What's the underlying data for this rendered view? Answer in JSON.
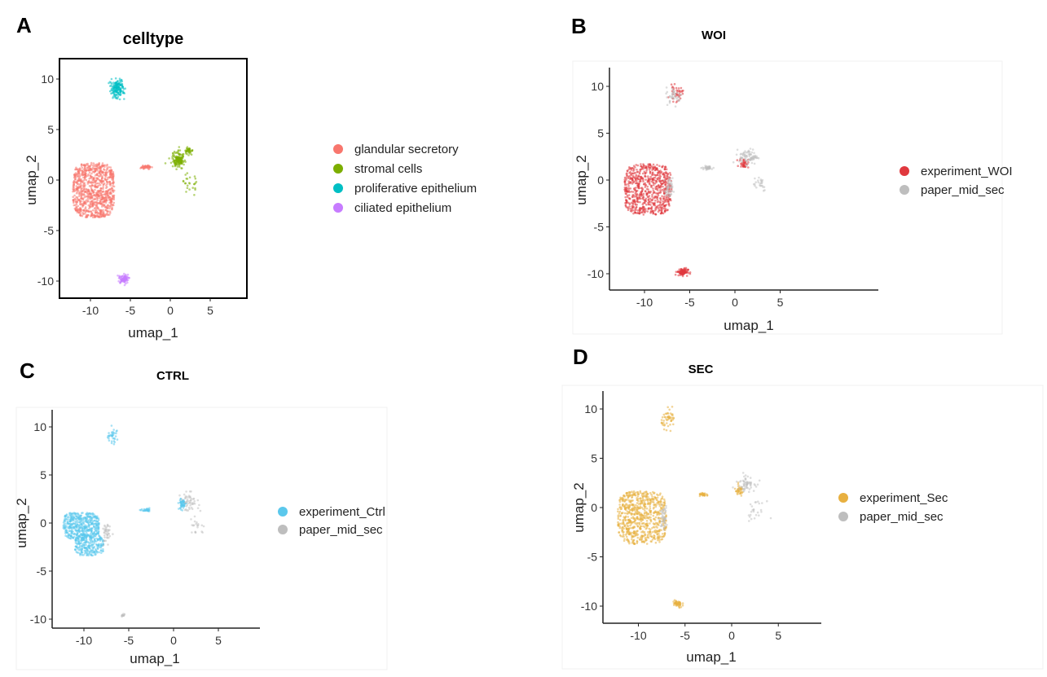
{
  "chart_data": [
    {
      "panel": "A",
      "type": "scatter",
      "title": "celltype",
      "xlabel": "umap_1",
      "ylabel": "umap_2",
      "xticks": [
        "-10",
        "-5",
        "0",
        "5"
      ],
      "yticks": [
        "10",
        "5",
        "0",
        "-5",
        "-10"
      ],
      "xlim": [
        -13.9,
        9.5
      ],
      "ylim": [
        -11.7,
        12.0
      ],
      "frame": "box",
      "legend_position": "right",
      "series": [
        {
          "name": "glandular secretory",
          "color": "#F8766D",
          "clusters": [
            {
              "cx": -9.6,
              "cy": -1.0,
              "sx": 2.6,
              "sy": 2.7,
              "n": 900,
              "shape": "box"
            },
            {
              "cx": -3.0,
              "cy": 1.3,
              "sx": 0.6,
              "sy": 0.2,
              "n": 40,
              "shape": "gauss"
            }
          ]
        },
        {
          "name": "stromal cells",
          "color": "#7CAE00",
          "clusters": [
            {
              "cx": 1.0,
              "cy": 2.0,
              "sx": 0.8,
              "sy": 0.8,
              "n": 150,
              "shape": "gauss"
            },
            {
              "cx": 2.3,
              "cy": 2.9,
              "sx": 0.5,
              "sy": 0.3,
              "n": 40,
              "shape": "gauss"
            },
            {
              "cx": 2.6,
              "cy": -0.3,
              "sx": 1.0,
              "sy": 0.9,
              "n": 25,
              "shape": "gauss"
            }
          ]
        },
        {
          "name": "proliferative epithelium",
          "color": "#00BFC4",
          "clusters": [
            {
              "cx": -6.7,
              "cy": 9.0,
              "sx": 0.9,
              "sy": 0.9,
              "n": 160,
              "shape": "gauss"
            }
          ]
        },
        {
          "name": "ciliated epithelium",
          "color": "#C77CFF",
          "clusters": [
            {
              "cx": -5.8,
              "cy": -9.8,
              "sx": 0.6,
              "sy": 0.4,
              "n": 90,
              "shape": "gauss"
            }
          ]
        }
      ]
    },
    {
      "panel": "B",
      "type": "scatter",
      "title": "WOI",
      "xlabel": "umap_1",
      "ylabel": "umap_2",
      "xticks": [
        "-10",
        "-5",
        "0",
        "5"
      ],
      "yticks": [
        "10",
        "5",
        "0",
        "-5",
        "-10"
      ],
      "frame": "axes",
      "legend_position": "right",
      "series": [
        {
          "name": "experiment_WOI",
          "color": "#E0383E",
          "clusters": [
            {
              "cx": -9.6,
              "cy": -1.0,
              "sx": 2.6,
              "sy": 2.7,
              "n": 700,
              "shape": "box"
            },
            {
              "cx": -6.5,
              "cy": 9.2,
              "sx": 0.7,
              "sy": 0.8,
              "n": 40,
              "shape": "gauss"
            },
            {
              "cx": 1.0,
              "cy": 1.8,
              "sx": 0.5,
              "sy": 0.5,
              "n": 40,
              "shape": "gauss"
            },
            {
              "cx": -5.8,
              "cy": -9.8,
              "sx": 0.6,
              "sy": 0.4,
              "n": 90,
              "shape": "gauss"
            }
          ]
        },
        {
          "name": "paper_mid_sec",
          "color": "#BEBEBE",
          "clusters": [
            {
              "cx": -7.3,
              "cy": -1.0,
              "sx": 0.4,
              "sy": 1.2,
              "n": 50,
              "shape": "gauss"
            },
            {
              "cx": -3.0,
              "cy": 1.3,
              "sx": 0.6,
              "sy": 0.2,
              "n": 40,
              "shape": "gauss"
            },
            {
              "cx": 1.5,
              "cy": 2.5,
              "sx": 1.0,
              "sy": 0.8,
              "n": 80,
              "shape": "gauss"
            },
            {
              "cx": 2.6,
              "cy": -0.3,
              "sx": 1.0,
              "sy": 0.9,
              "n": 25,
              "shape": "gauss"
            },
            {
              "cx": -6.7,
              "cy": 9.0,
              "sx": 0.9,
              "sy": 0.9,
              "n": 40,
              "shape": "gauss"
            }
          ]
        }
      ]
    },
    {
      "panel": "C",
      "type": "scatter",
      "title": "CTRL",
      "xlabel": "umap_1",
      "ylabel": "umap_2",
      "xticks": [
        "-10",
        "-5",
        "0",
        "5"
      ],
      "yticks": [
        "10",
        "5",
        "0",
        "-5",
        "-10"
      ],
      "frame": "axes",
      "legend_position": "right",
      "series": [
        {
          "name": "experiment_Ctrl",
          "color": "#5BC8EC",
          "clusters": [
            {
              "cx": -10.3,
              "cy": -0.3,
              "sx": 2.0,
              "sy": 1.4,
              "n": 450,
              "shape": "box"
            },
            {
              "cx": -9.4,
              "cy": -2.3,
              "sx": 1.6,
              "sy": 1.1,
              "n": 250,
              "shape": "box"
            },
            {
              "cx": -6.8,
              "cy": 9.0,
              "sx": 0.8,
              "sy": 0.8,
              "n": 35,
              "shape": "gauss"
            },
            {
              "cx": -3.0,
              "cy": 1.3,
              "sx": 0.5,
              "sy": 0.15,
              "n": 30,
              "shape": "gauss"
            },
            {
              "cx": 1.0,
              "cy": 2.0,
              "sx": 0.4,
              "sy": 0.6,
              "n": 60,
              "shape": "gauss"
            }
          ]
        },
        {
          "name": "paper_mid_sec",
          "color": "#BEBEBE",
          "clusters": [
            {
              "cx": -7.5,
              "cy": -1.2,
              "sx": 0.4,
              "sy": 1.2,
              "n": 40,
              "shape": "gauss"
            },
            {
              "cx": 1.8,
              "cy": 2.2,
              "sx": 1.0,
              "sy": 0.9,
              "n": 50,
              "shape": "gauss"
            },
            {
              "cx": 2.6,
              "cy": -0.3,
              "sx": 1.0,
              "sy": 0.9,
              "n": 20,
              "shape": "gauss"
            },
            {
              "cx": -5.5,
              "cy": -9.6,
              "sx": 0.6,
              "sy": 0.2,
              "n": 12,
              "shape": "gauss"
            }
          ]
        }
      ]
    },
    {
      "panel": "D",
      "type": "scatter",
      "title": "SEC",
      "xlabel": "umap_1",
      "ylabel": "umap_2",
      "xticks": [
        "-10",
        "-5",
        "0",
        "5"
      ],
      "yticks": [
        "10",
        "5",
        "0",
        "-5",
        "-10"
      ],
      "frame": "axes",
      "legend_position": "right",
      "series": [
        {
          "name": "experiment_Sec",
          "color": "#E8B040",
          "clusters": [
            {
              "cx": -9.6,
              "cy": -1.0,
              "sx": 2.6,
              "sy": 2.7,
              "n": 700,
              "shape": "box"
            },
            {
              "cx": -6.7,
              "cy": 9.0,
              "sx": 0.8,
              "sy": 0.9,
              "n": 50,
              "shape": "gauss"
            },
            {
              "cx": -3.0,
              "cy": 1.3,
              "sx": 0.5,
              "sy": 0.15,
              "n": 30,
              "shape": "gauss"
            },
            {
              "cx": 0.8,
              "cy": 1.7,
              "sx": 0.5,
              "sy": 0.5,
              "n": 40,
              "shape": "gauss"
            },
            {
              "cx": -5.8,
              "cy": -9.8,
              "sx": 0.5,
              "sy": 0.4,
              "n": 50,
              "shape": "gauss"
            }
          ]
        },
        {
          "name": "paper_mid_sec",
          "color": "#BEBEBE",
          "clusters": [
            {
              "cx": -7.3,
              "cy": -1.0,
              "sx": 0.4,
              "sy": 1.2,
              "n": 45,
              "shape": "gauss"
            },
            {
              "cx": 1.5,
              "cy": 2.5,
              "sx": 1.0,
              "sy": 0.8,
              "n": 60,
              "shape": "gauss"
            },
            {
              "cx": 2.6,
              "cy": -0.3,
              "sx": 1.0,
              "sy": 0.9,
              "n": 25,
              "shape": "gauss"
            }
          ]
        }
      ]
    }
  ],
  "panel_letters": [
    "A",
    "B",
    "C",
    "D"
  ]
}
